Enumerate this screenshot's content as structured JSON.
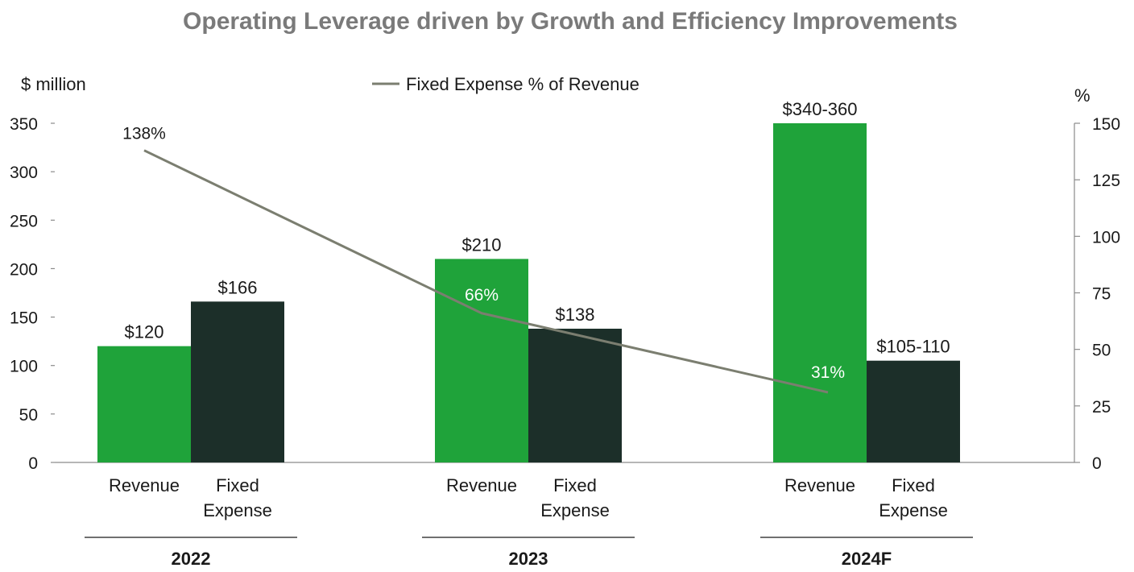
{
  "colors": {
    "revenue": "#1fa33a",
    "fixed_expense": "#1c2f29",
    "line": "#7b7e70",
    "title": "#7a7a7a",
    "axis": "#555555"
  },
  "chart_data": {
    "type": "bar",
    "title": "Operating Leverage driven by Growth and Efficiency Improvements",
    "ylabel": "$ million",
    "y2label": "%",
    "ylim": [
      0,
      350
    ],
    "y_ticks": [
      0,
      50,
      100,
      150,
      200,
      250,
      300,
      350
    ],
    "y2lim": [
      0,
      150
    ],
    "y2_ticks": [
      0,
      25,
      50,
      75,
      100,
      125,
      150
    ],
    "legend": {
      "placement": "top-center",
      "entries": [
        "Fixed Expense % of Revenue"
      ]
    },
    "groups": [
      {
        "label": "2022",
        "bars": [
          {
            "category": "Revenue",
            "category_lines": [
              "Revenue"
            ],
            "value": 120,
            "label": "$120",
            "series": "revenue"
          },
          {
            "category": "Fixed Expense",
            "category_lines": [
              "Fixed",
              "Expense"
            ],
            "value": 166,
            "label": "$166",
            "series": "fixed_expense"
          }
        ],
        "pct": 138,
        "pct_label": "138%"
      },
      {
        "label": "2023",
        "bars": [
          {
            "category": "Revenue",
            "category_lines": [
              "Revenue"
            ],
            "value": 210,
            "label": "$210",
            "series": "revenue"
          },
          {
            "category": "Fixed Expense",
            "category_lines": [
              "Fixed",
              "Expense"
            ],
            "value": 138,
            "label": "$138",
            "series": "fixed_expense"
          }
        ],
        "pct": 66,
        "pct_label": "66%"
      },
      {
        "label": "2024F",
        "bars": [
          {
            "category": "Revenue",
            "category_lines": [
              "Revenue"
            ],
            "value": 350,
            "label": "$340-360",
            "series": "revenue"
          },
          {
            "category": "Fixed Expense",
            "category_lines": [
              "Fixed",
              "Expense"
            ],
            "value": 105,
            "label": "$105-110",
            "series": "fixed_expense"
          }
        ],
        "pct": 31,
        "pct_label": "31%"
      }
    ],
    "line_series": {
      "name": "Fixed Expense % of Revenue",
      "axis": "right",
      "values": [
        138,
        66,
        31
      ]
    }
  }
}
